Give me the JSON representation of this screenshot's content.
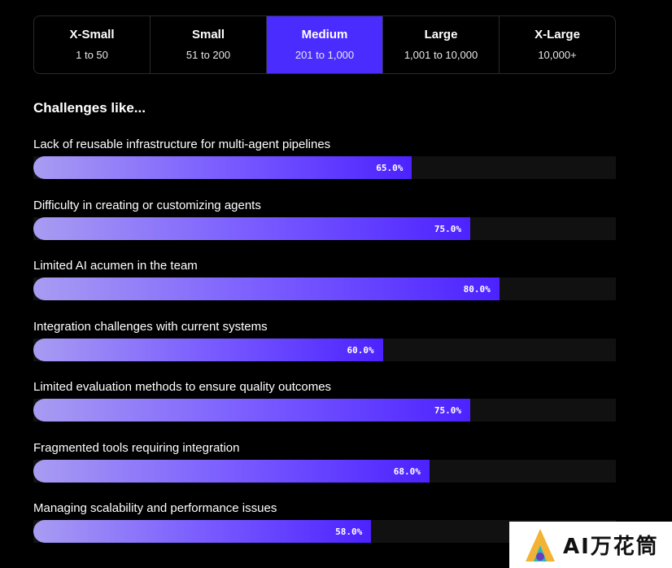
{
  "tabs": [
    {
      "label": "X-Small",
      "range": "1 to 50",
      "active": false
    },
    {
      "label": "Small",
      "range": "51 to 200",
      "active": false
    },
    {
      "label": "Medium",
      "range": "201 to 1,000",
      "active": true
    },
    {
      "label": "Large",
      "range": "1,001 to 10,000",
      "active": false
    },
    {
      "label": "X-Large",
      "range": "10,000+",
      "active": false
    }
  ],
  "heading": "Challenges like...",
  "challenges": [
    {
      "label": "Lack of reusable infrastructure for multi-agent pipelines",
      "percent": 65.0,
      "percent_text": "65.0%"
    },
    {
      "label": "Difficulty in creating or customizing agents",
      "percent": 75.0,
      "percent_text": "75.0%"
    },
    {
      "label": "Limited AI acumen in the team",
      "percent": 80.0,
      "percent_text": "80.0%"
    },
    {
      "label": "Integration challenges with current systems",
      "percent": 60.0,
      "percent_text": "60.0%"
    },
    {
      "label": "Limited evaluation methods to ensure quality outcomes",
      "percent": 75.0,
      "percent_text": "75.0%"
    },
    {
      "label": "Fragmented tools requiring integration",
      "percent": 68.0,
      "percent_text": "68.0%"
    },
    {
      "label": "Managing scalability and performance issues",
      "percent": 58.0,
      "percent_text": "58.0%"
    }
  ],
  "watermark": {
    "text": "AI万花筒"
  },
  "colors": {
    "background": "#000000",
    "active_tab": "#4a2cff",
    "bar_start": "#a89cf2",
    "bar_end": "#4c22ff",
    "track": "#111111"
  }
}
